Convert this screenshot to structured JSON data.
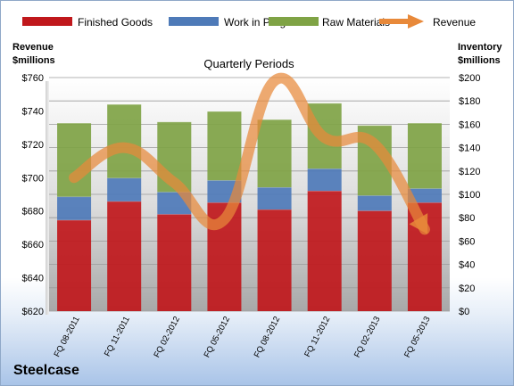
{
  "chart_data": {
    "type": "bar",
    "title": "Quarterly Periods",
    "company": "Steelcase",
    "left_axis": {
      "title_line1": "Revenue",
      "title_line2": "$millions",
      "range": [
        620,
        760
      ],
      "step": 20,
      "prefix": "$"
    },
    "right_axis": {
      "title_line1": "Inventory",
      "title_line2": "$millions",
      "range": [
        0,
        200
      ],
      "step": 20,
      "prefix": "$"
    },
    "categories": [
      "FQ 08-2011",
      "FQ 11-2011",
      "FQ 02-2012",
      "FQ 05-2012",
      "FQ 08-2012",
      "FQ 11-2012",
      "FQ 02-2013",
      "FQ 05-2013"
    ],
    "series": [
      {
        "name": "Finished Goods",
        "axis": "right",
        "stacked": true,
        "color": "#c0181c",
        "values": [
          78,
          94,
          83,
          93,
          87,
          103,
          86,
          93
        ]
      },
      {
        "name": "Work in Progress",
        "axis": "right",
        "stacked": true,
        "color": "#4e7ab8",
        "values": [
          20,
          20,
          19,
          19,
          19,
          19,
          13,
          12
        ]
      },
      {
        "name": "Raw Materials",
        "axis": "right",
        "stacked": true,
        "color": "#7fa345",
        "values": [
          63,
          63,
          60,
          59,
          58,
          56,
          60,
          56
        ]
      },
      {
        "name": "Revenue",
        "axis": "left",
        "type": "line",
        "color": "#e8893a",
        "values": [
          700,
          718,
          697,
          675,
          758,
          724,
          720,
          669
        ]
      }
    ],
    "legend_position": "top",
    "grid": true
  }
}
